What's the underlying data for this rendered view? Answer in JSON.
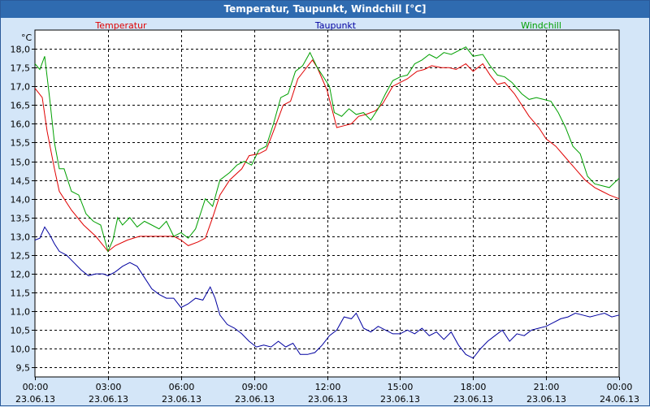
{
  "window": {
    "title": "Temperatur, Taupunkt, Windchill [°C]"
  },
  "chart_data": {
    "type": "line",
    "title": "Temperatur, Taupunkt, Windchill [°C]",
    "ylabel": "°C",
    "ylim": [
      9.25,
      18.5
    ],
    "yticks": [
      "9,5",
      "10,0",
      "10,5",
      "11,0",
      "11,5",
      "12,0",
      "12,5",
      "13,0",
      "13,5",
      "14,0",
      "14,5",
      "15,0",
      "15,5",
      "16,0",
      "16,5",
      "17,0",
      "17,5",
      "18,0"
    ],
    "xlim_hours": [
      0,
      24
    ],
    "xticks": [
      {
        "time": "00:00",
        "date": "23.06.13"
      },
      {
        "time": "03:00",
        "date": "23.06.13"
      },
      {
        "time": "06:00",
        "date": "23.06.13"
      },
      {
        "time": "09:00",
        "date": "23.06.13"
      },
      {
        "time": "12:00",
        "date": "23.06.13"
      },
      {
        "time": "15:00",
        "date": "23.06.13"
      },
      {
        "time": "18:00",
        "date": "23.06.13"
      },
      {
        "time": "21:00",
        "date": "23.06.13"
      },
      {
        "time": "00:00",
        "date": "24.06.13"
      }
    ],
    "grid": true,
    "legend_position": "top",
    "series": [
      {
        "name": "Temperatur",
        "color": "#e00000",
        "points": [
          [
            0,
            16.95
          ],
          [
            0.3,
            16.7
          ],
          [
            0.5,
            15.8
          ],
          [
            0.8,
            14.8
          ],
          [
            1,
            14.2
          ],
          [
            1.5,
            13.7
          ],
          [
            2,
            13.3
          ],
          [
            2.5,
            13.0
          ],
          [
            3,
            12.6
          ],
          [
            3.3,
            12.75
          ],
          [
            3.8,
            12.9
          ],
          [
            4.3,
            13.0
          ],
          [
            5,
            13.0
          ],
          [
            5.7,
            13.0
          ],
          [
            6,
            12.9
          ],
          [
            6.3,
            12.75
          ],
          [
            6.7,
            12.85
          ],
          [
            7,
            12.95
          ],
          [
            7.3,
            13.5
          ],
          [
            7.6,
            14.1
          ],
          [
            8,
            14.5
          ],
          [
            8.5,
            14.8
          ],
          [
            8.8,
            15.15
          ],
          [
            9.2,
            15.2
          ],
          [
            9.5,
            15.3
          ],
          [
            9.8,
            15.8
          ],
          [
            10.2,
            16.5
          ],
          [
            10.5,
            16.6
          ],
          [
            10.8,
            17.2
          ],
          [
            11.1,
            17.45
          ],
          [
            11.4,
            17.7
          ],
          [
            11.6,
            17.5
          ],
          [
            11.8,
            17.2
          ],
          [
            12.0,
            16.9
          ],
          [
            12.2,
            16.4
          ],
          [
            12.4,
            15.9
          ],
          [
            12.7,
            15.95
          ],
          [
            13.0,
            16.0
          ],
          [
            13.3,
            16.2
          ],
          [
            13.6,
            16.25
          ],
          [
            14.0,
            16.35
          ],
          [
            14.3,
            16.55
          ],
          [
            14.7,
            17.0
          ],
          [
            15.0,
            17.1
          ],
          [
            15.3,
            17.2
          ],
          [
            15.7,
            17.4
          ],
          [
            16.0,
            17.45
          ],
          [
            16.3,
            17.55
          ],
          [
            16.7,
            17.5
          ],
          [
            17.0,
            17.5
          ],
          [
            17.3,
            17.45
          ],
          [
            17.7,
            17.6
          ],
          [
            18.0,
            17.4
          ],
          [
            18.4,
            17.6
          ],
          [
            18.7,
            17.3
          ],
          [
            19.0,
            17.05
          ],
          [
            19.3,
            17.1
          ],
          [
            19.7,
            16.8
          ],
          [
            20.0,
            16.5
          ],
          [
            20.3,
            16.2
          ],
          [
            20.7,
            15.9
          ],
          [
            21.0,
            15.6
          ],
          [
            21.4,
            15.4
          ],
          [
            21.8,
            15.1
          ],
          [
            22.2,
            14.8
          ],
          [
            22.6,
            14.5
          ],
          [
            23.0,
            14.3
          ],
          [
            23.3,
            14.2
          ],
          [
            23.6,
            14.1
          ],
          [
            24.0,
            14.0
          ]
        ]
      },
      {
        "name": "Taupunkt",
        "color": "#0000a0",
        "points": [
          [
            0,
            12.9
          ],
          [
            0.2,
            12.95
          ],
          [
            0.4,
            13.25
          ],
          [
            0.6,
            13.05
          ],
          [
            0.8,
            12.8
          ],
          [
            1.0,
            12.6
          ],
          [
            1.3,
            12.5
          ],
          [
            1.6,
            12.3
          ],
          [
            1.9,
            12.1
          ],
          [
            2.2,
            11.95
          ],
          [
            2.5,
            12.0
          ],
          [
            2.8,
            12.0
          ],
          [
            3.0,
            11.95
          ],
          [
            3.3,
            12.05
          ],
          [
            3.6,
            12.2
          ],
          [
            3.9,
            12.3
          ],
          [
            4.2,
            12.2
          ],
          [
            4.5,
            11.9
          ],
          [
            4.8,
            11.6
          ],
          [
            5.1,
            11.45
          ],
          [
            5.4,
            11.35
          ],
          [
            5.7,
            11.35
          ],
          [
            6.0,
            11.1
          ],
          [
            6.3,
            11.2
          ],
          [
            6.6,
            11.35
          ],
          [
            6.9,
            11.3
          ],
          [
            7.2,
            11.65
          ],
          [
            7.4,
            11.35
          ],
          [
            7.6,
            10.9
          ],
          [
            7.9,
            10.65
          ],
          [
            8.2,
            10.55
          ],
          [
            8.5,
            10.4
          ],
          [
            8.8,
            10.2
          ],
          [
            9.1,
            10.05
          ],
          [
            9.4,
            10.1
          ],
          [
            9.7,
            10.05
          ],
          [
            10.0,
            10.2
          ],
          [
            10.3,
            10.05
          ],
          [
            10.6,
            10.15
          ],
          [
            10.9,
            9.85
          ],
          [
            11.2,
            9.85
          ],
          [
            11.5,
            9.9
          ],
          [
            11.8,
            10.1
          ],
          [
            12.1,
            10.35
          ],
          [
            12.4,
            10.5
          ],
          [
            12.7,
            10.85
          ],
          [
            13.0,
            10.8
          ],
          [
            13.2,
            10.95
          ],
          [
            13.5,
            10.55
          ],
          [
            13.8,
            10.45
          ],
          [
            14.1,
            10.6
          ],
          [
            14.4,
            10.5
          ],
          [
            14.7,
            10.4
          ],
          [
            15.0,
            10.4
          ],
          [
            15.3,
            10.5
          ],
          [
            15.6,
            10.4
          ],
          [
            15.9,
            10.55
          ],
          [
            16.2,
            10.35
          ],
          [
            16.5,
            10.45
          ],
          [
            16.8,
            10.25
          ],
          [
            17.1,
            10.45
          ],
          [
            17.4,
            10.1
          ],
          [
            17.7,
            9.85
          ],
          [
            18.0,
            9.75
          ],
          [
            18.3,
            10.0
          ],
          [
            18.6,
            10.2
          ],
          [
            18.9,
            10.35
          ],
          [
            19.2,
            10.5
          ],
          [
            19.5,
            10.2
          ],
          [
            19.8,
            10.4
          ],
          [
            20.1,
            10.35
          ],
          [
            20.4,
            10.5
          ],
          [
            20.7,
            10.55
          ],
          [
            21.0,
            10.6
          ],
          [
            21.3,
            10.7
          ],
          [
            21.6,
            10.8
          ],
          [
            21.9,
            10.85
          ],
          [
            22.2,
            10.95
          ],
          [
            22.5,
            10.9
          ],
          [
            22.8,
            10.85
          ],
          [
            23.1,
            10.9
          ],
          [
            23.4,
            10.95
          ],
          [
            23.7,
            10.85
          ],
          [
            24.0,
            10.9
          ]
        ]
      },
      {
        "name": "Windchill",
        "color": "#00a000",
        "points": [
          [
            0,
            17.6
          ],
          [
            0.2,
            17.45
          ],
          [
            0.4,
            17.8
          ],
          [
            0.6,
            16.7
          ],
          [
            0.8,
            15.5
          ],
          [
            1.0,
            14.8
          ],
          [
            1.2,
            14.8
          ],
          [
            1.5,
            14.2
          ],
          [
            1.8,
            14.1
          ],
          [
            2.1,
            13.6
          ],
          [
            2.4,
            13.4
          ],
          [
            2.7,
            13.3
          ],
          [
            3.0,
            12.6
          ],
          [
            3.2,
            12.9
          ],
          [
            3.4,
            13.5
          ],
          [
            3.6,
            13.3
          ],
          [
            3.9,
            13.5
          ],
          [
            4.2,
            13.25
          ],
          [
            4.5,
            13.4
          ],
          [
            4.8,
            13.3
          ],
          [
            5.1,
            13.2
          ],
          [
            5.4,
            13.4
          ],
          [
            5.7,
            13.0
          ],
          [
            6.0,
            13.1
          ],
          [
            6.3,
            12.95
          ],
          [
            6.6,
            13.2
          ],
          [
            7.0,
            14.0
          ],
          [
            7.3,
            13.8
          ],
          [
            7.6,
            14.5
          ],
          [
            8.0,
            14.7
          ],
          [
            8.3,
            14.9
          ],
          [
            8.6,
            15.0
          ],
          [
            8.9,
            14.9
          ],
          [
            9.2,
            15.3
          ],
          [
            9.5,
            15.4
          ],
          [
            9.8,
            16.0
          ],
          [
            10.1,
            16.7
          ],
          [
            10.4,
            16.8
          ],
          [
            10.7,
            17.4
          ],
          [
            11.0,
            17.55
          ],
          [
            11.3,
            17.9
          ],
          [
            11.6,
            17.5
          ],
          [
            11.9,
            17.2
          ],
          [
            12.1,
            17.0
          ],
          [
            12.3,
            16.3
          ],
          [
            12.6,
            16.2
          ],
          [
            12.9,
            16.4
          ],
          [
            13.2,
            16.25
          ],
          [
            13.5,
            16.3
          ],
          [
            13.8,
            16.1
          ],
          [
            14.1,
            16.4
          ],
          [
            14.4,
            16.8
          ],
          [
            14.7,
            17.15
          ],
          [
            15.0,
            17.25
          ],
          [
            15.3,
            17.3
          ],
          [
            15.6,
            17.6
          ],
          [
            15.9,
            17.7
          ],
          [
            16.2,
            17.85
          ],
          [
            16.5,
            17.75
          ],
          [
            16.8,
            17.9
          ],
          [
            17.1,
            17.85
          ],
          [
            17.4,
            17.95
          ],
          [
            17.7,
            18.05
          ],
          [
            18.0,
            17.8
          ],
          [
            18.4,
            17.85
          ],
          [
            18.7,
            17.55
          ],
          [
            19.0,
            17.3
          ],
          [
            19.3,
            17.25
          ],
          [
            19.6,
            17.1
          ],
          [
            20.0,
            16.8
          ],
          [
            20.3,
            16.65
          ],
          [
            20.6,
            16.7
          ],
          [
            20.9,
            16.65
          ],
          [
            21.2,
            16.6
          ],
          [
            21.5,
            16.3
          ],
          [
            21.8,
            15.9
          ],
          [
            22.1,
            15.4
          ],
          [
            22.4,
            15.2
          ],
          [
            22.7,
            14.6
          ],
          [
            23.0,
            14.4
          ],
          [
            23.3,
            14.35
          ],
          [
            23.6,
            14.3
          ],
          [
            24.0,
            14.55
          ]
        ]
      }
    ]
  }
}
